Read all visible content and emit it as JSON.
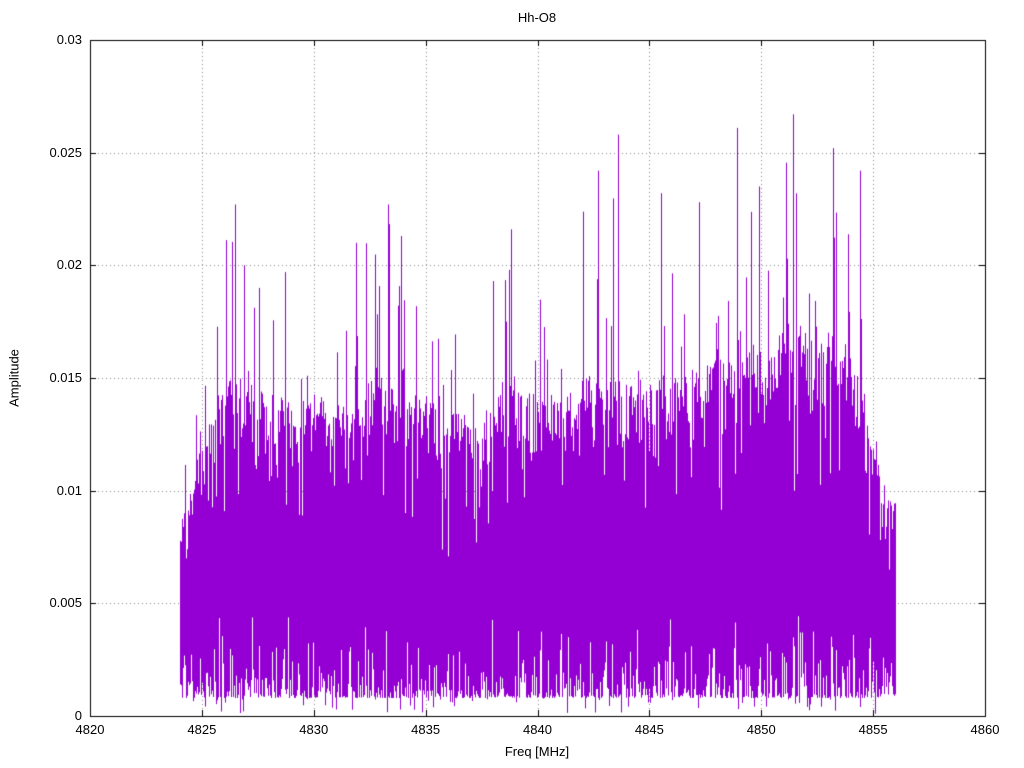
{
  "chart_data": {
    "type": "line",
    "title": "Hh-O8",
    "xlabel": "Freq [MHz]",
    "ylabel": "Amplitude",
    "xlim": [
      4820,
      4860
    ],
    "ylim": [
      0,
      0.03
    ],
    "xticks": [
      "4820",
      "4825",
      "4830",
      "4835",
      "4840",
      "4845",
      "4850",
      "4855",
      "4860"
    ],
    "yticks": [
      "0",
      "0.005",
      "0.01",
      "0.015",
      "0.02",
      "0.025",
      "0.03"
    ],
    "grid": true,
    "legend": "none",
    "series_name": "spectrum",
    "series_color": "#9400d3",
    "background_color": "#ffffff",
    "grid_color": "#909090",
    "border_color": "#000000",
    "signal": {
      "x_start": 4824.0,
      "x_end": 4856.0,
      "noise_floor": 0.003,
      "dense_low": 0.004,
      "envelope_points": [
        {
          "x": 4824,
          "dense": 0.008,
          "max": 0.011
        },
        {
          "x": 4825,
          "dense": 0.011,
          "max": 0.015
        },
        {
          "x": 4826,
          "dense": 0.014,
          "max": 0.0227
        },
        {
          "x": 4827,
          "dense": 0.014,
          "max": 0.02
        },
        {
          "x": 4828,
          "dense": 0.013,
          "max": 0.0197
        },
        {
          "x": 4829,
          "dense": 0.013,
          "max": 0.019
        },
        {
          "x": 4830,
          "dense": 0.013,
          "max": 0.0186
        },
        {
          "x": 4831,
          "dense": 0.013,
          "max": 0.0192
        },
        {
          "x": 4832,
          "dense": 0.013,
          "max": 0.021
        },
        {
          "x": 4833,
          "dense": 0.014,
          "max": 0.0227
        },
        {
          "x": 4834,
          "dense": 0.014,
          "max": 0.021
        },
        {
          "x": 4835,
          "dense": 0.013,
          "max": 0.0192
        },
        {
          "x": 4836,
          "dense": 0.013,
          "max": 0.0181
        },
        {
          "x": 4837,
          "dense": 0.012,
          "max": 0.0175
        },
        {
          "x": 4838,
          "dense": 0.013,
          "max": 0.0206
        },
        {
          "x": 4839,
          "dense": 0.014,
          "max": 0.0216
        },
        {
          "x": 4840,
          "dense": 0.013,
          "max": 0.019
        },
        {
          "x": 4841,
          "dense": 0.013,
          "max": 0.0185
        },
        {
          "x": 4842,
          "dense": 0.014,
          "max": 0.0242
        },
        {
          "x": 4843,
          "dense": 0.014,
          "max": 0.0258
        },
        {
          "x": 4844,
          "dense": 0.014,
          "max": 0.019
        },
        {
          "x": 4845,
          "dense": 0.014,
          "max": 0.0232
        },
        {
          "x": 4846,
          "dense": 0.014,
          "max": 0.0215
        },
        {
          "x": 4847,
          "dense": 0.014,
          "max": 0.0228
        },
        {
          "x": 4848,
          "dense": 0.015,
          "max": 0.02
        },
        {
          "x": 4849,
          "dense": 0.015,
          "max": 0.0261
        },
        {
          "x": 4850,
          "dense": 0.015,
          "max": 0.0235
        },
        {
          "x": 4851,
          "dense": 0.016,
          "max": 0.0267
        },
        {
          "x": 4852,
          "dense": 0.016,
          "max": 0.021
        },
        {
          "x": 4853,
          "dense": 0.016,
          "max": 0.0252
        },
        {
          "x": 4854,
          "dense": 0.015,
          "max": 0.0242
        },
        {
          "x": 4855,
          "dense": 0.011,
          "max": 0.013
        },
        {
          "x": 4856,
          "dense": 0.009,
          "max": 0.0105
        }
      ],
      "notable_peaks": [
        {
          "x": 4826.5,
          "y": 0.0227
        },
        {
          "x": 4826.9,
          "y": 0.02
        },
        {
          "x": 4828.7,
          "y": 0.0197
        },
        {
          "x": 4831.9,
          "y": 0.021
        },
        {
          "x": 4833.3,
          "y": 0.0227
        },
        {
          "x": 4833.9,
          "y": 0.0213
        },
        {
          "x": 4838.8,
          "y": 0.0216
        },
        {
          "x": 4842.7,
          "y": 0.0242
        },
        {
          "x": 4843.6,
          "y": 0.0258
        },
        {
          "x": 4845.5,
          "y": 0.0232
        },
        {
          "x": 4847.2,
          "y": 0.0228
        },
        {
          "x": 4848.9,
          "y": 0.0261
        },
        {
          "x": 4849.9,
          "y": 0.0235
        },
        {
          "x": 4851.4,
          "y": 0.0267
        },
        {
          "x": 4853.2,
          "y": 0.0252
        },
        {
          "x": 4854.4,
          "y": 0.0242
        }
      ]
    }
  }
}
